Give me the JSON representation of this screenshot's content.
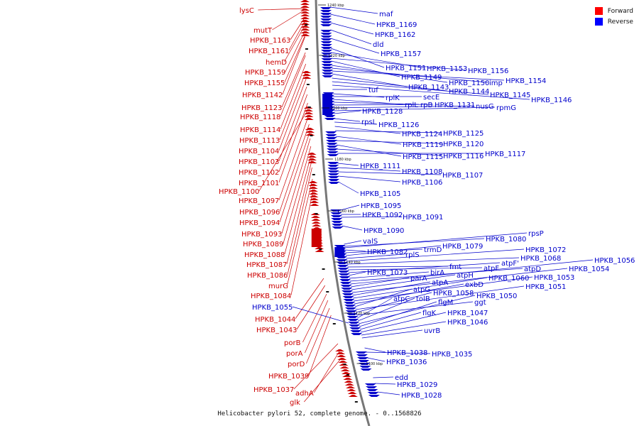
{
  "caption": "Helicobacter pylori 52, complete genome. - 0..1568826",
  "legend": [
    {
      "label": "Forward",
      "color": "#ff0000"
    },
    {
      "label": "Reverse",
      "color": "#0000ff"
    }
  ],
  "colors": {
    "forward": "#cc0000",
    "reverse": "#0000cc",
    "backbone": "#777777"
  },
  "ticks": [
    {
      "label": "1240 kbp",
      "y": 7
    },
    {
      "label": "1220 kbp",
      "y": 78
    },
    {
      "label": "1200 kbp",
      "y": 152
    },
    {
      "label": "1180 kbp",
      "y": 224
    },
    {
      "label": "1160 kbp",
      "y": 297
    },
    {
      "label": "1140 kbp",
      "y": 369
    },
    {
      "label": "1120 kbp",
      "y": 441
    },
    {
      "label": "1100 kbp",
      "y": 512
    }
  ],
  "forward_labels": [
    "lysC",
    "mutT",
    "HPKB_1163",
    "HPKB_1161",
    "hemD",
    "HPKB_1159",
    "HPKB_1155",
    "HPKB_1142",
    "HPKB_1123",
    "HPKB_1118",
    "HPKB_1114",
    "HPKB_1113",
    "HPKB_1104",
    "HPKB_1103",
    "HPKB_1102",
    "HPKB_1101",
    "HPKB_1100",
    "HPKB_1097",
    "HPKB_1096",
    "HPKB_1094",
    "HPKB_1093",
    "HPKB_1089",
    "HPKB_1088",
    "HPKB_1087",
    "HPKB_1086",
    "murG",
    "HPKB_1084",
    "HPKB_1044",
    "HPKB_1043",
    "porB",
    "porA",
    "porD",
    "HPKB_1039",
    "HPKB_1037",
    "adhA",
    "glk"
  ],
  "left_reverse_labels": [
    "HPKB_1055"
  ],
  "reverse_labels": [
    "maf",
    "HPKB_1169",
    "HPKB_1162",
    "dld",
    "HPKB_1157",
    "HPKB_1151",
    "HPKB_1153",
    "HPKB_1156",
    "HPKB_1149",
    "HPKB_1150",
    "imp",
    "HPKB_1154",
    "HPKB_1143",
    "HPKB_1144",
    "HPKB_1145",
    "HPKB_1146",
    "tuf",
    "rplK",
    "secE",
    "rplL",
    "rpB",
    "HPKB_1131",
    "nusG",
    "rpmG",
    "HPKB_1128",
    "rpsL",
    "HPKB_1126",
    "HPKB_1124",
    "HPKB_1125",
    "HPKB_1119",
    "HPKB_1120",
    "HPKB_1115",
    "HPKB_1116",
    "HPKB_1117",
    "HPKB_1111",
    "HPKB_1108",
    "HPKB_1107",
    "HPKB_1106",
    "HPKB_1105",
    "HPKB_1095",
    "HPKB_1092",
    "HPKB_1091",
    "HPKB_1090",
    "valS",
    "HPKB_1080",
    "rpsP",
    "HPKB_1082",
    "trmD",
    "HPKB_1079",
    "rplS",
    "HPKB_1072",
    "HPKB_1068",
    "fmt",
    "atpF",
    "atpF'",
    "HPKB_1073",
    "birA",
    "atpD",
    "HPKB_1056",
    "parA",
    "atpH",
    "HPKB_1054",
    "atpA",
    "HPKB_1060",
    "HPKB_1053",
    "exbD",
    "atpG",
    "HPKB_1051",
    "HPKB_1058",
    "ggt",
    "atpC",
    "tolB",
    "HPKB_1050",
    "flgM",
    "flgK",
    "HPKB_1047",
    "HPKB_1046",
    "uvrB",
    "HPKB_1038",
    "HPKB_1035",
    "HPKB_1036",
    "edd",
    "HPKB_1029",
    "HPKB_1028"
  ]
}
